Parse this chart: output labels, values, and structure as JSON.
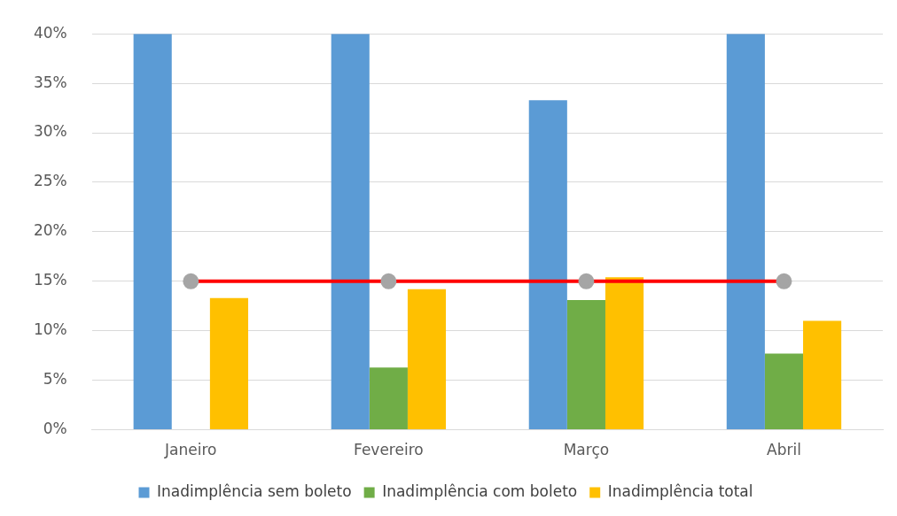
{
  "chart_data": {
    "type": "bar",
    "categories": [
      "Janeiro",
      "Fevereiro",
      "Março",
      "Abril"
    ],
    "series": [
      {
        "name": "Inadimplência sem boleto",
        "color": "#5b9bd5",
        "values": [
          40,
          40,
          33.3,
          40
        ]
      },
      {
        "name": "Inadimplência com boleto",
        "color": "#70ad47",
        "values": [
          0,
          6.3,
          13.1,
          7.7
        ]
      },
      {
        "name": "Inadimplência total",
        "color": "#ffc000",
        "values": [
          13.3,
          14.2,
          15.4,
          11.0
        ]
      },
      {
        "type": "line",
        "color": "#ff0000",
        "colors": [
          "#a5a5a5",
          "#a5a5a5",
          "#a5a5a5",
          "#a5a5a5"
        ],
        "values": [
          15,
          15,
          15,
          15
        ]
      }
    ],
    "ylim": [
      0,
      40
    ],
    "yticks": [
      {
        "value": 0,
        "label": "0%"
      },
      {
        "value": 5,
        "label": "5%"
      },
      {
        "value": 10,
        "label": "10%"
      },
      {
        "value": 15,
        "label": "15%"
      },
      {
        "value": 20,
        "label": "20%"
      },
      {
        "value": 25,
        "label": "25%"
      },
      {
        "value": 30,
        "label": "30%"
      },
      {
        "value": 35,
        "label": "35%"
      },
      {
        "value": 40,
        "label": "40%"
      }
    ],
    "grid": "y",
    "legend": "bottom",
    "marker": "circle"
  }
}
